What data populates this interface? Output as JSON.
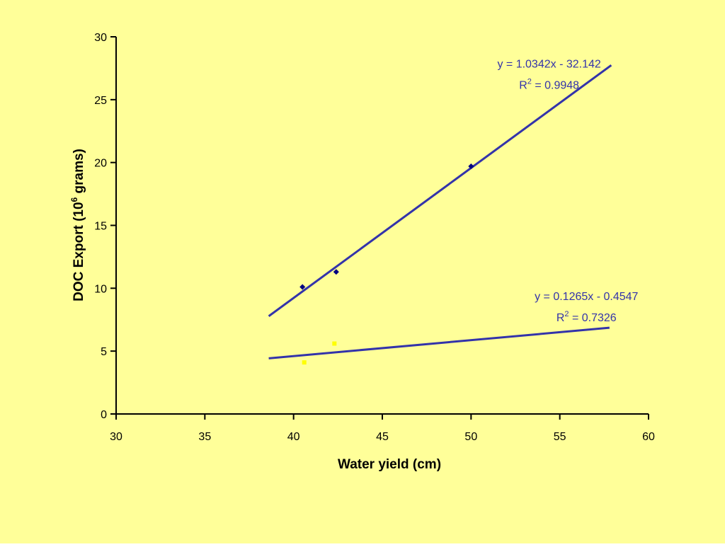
{
  "background_color": "#FFFF99",
  "axis_color": "#000000",
  "chart_data": {
    "type": "scatter",
    "title": "",
    "xlabel": "Water yield (cm)",
    "ylabel": {
      "prefix": "DOC Export (10",
      "superscript": "6",
      "suffix": " grams)"
    },
    "xlim": [
      30,
      60
    ],
    "ylim": [
      0,
      30
    ],
    "x_ticks": [
      30,
      35,
      40,
      45,
      50,
      55,
      60
    ],
    "y_ticks": [
      0,
      5,
      10,
      15,
      20,
      25,
      30
    ],
    "grid": false,
    "series": [
      {
        "marker": "diamond",
        "marker_color": "#000080",
        "points": [
          {
            "x": 40.5,
            "y": 10.1
          },
          {
            "x": 42.4,
            "y": 11.3
          },
          {
            "x": 50.0,
            "y": 19.7
          }
        ],
        "trendline": {
          "slope": 1.0342,
          "intercept": -32.142,
          "x_range": [
            38.6,
            57.9
          ],
          "color": "#3333AA",
          "equation": "y = 1.0342x - 32.142",
          "r2_prefix": "R",
          "r2_sup": "2",
          "r2_suffix": " = 0.9948",
          "label_anchor": {
            "x": 54.4,
            "y": 27.9
          }
        }
      },
      {
        "marker": "square",
        "marker_color": "#FFFF00",
        "points": [
          {
            "x": 40.6,
            "y": 4.1
          },
          {
            "x": 42.3,
            "y": 5.6
          }
        ],
        "trendline": {
          "slope": 0.1265,
          "intercept": -0.4547,
          "x_range": [
            38.6,
            57.8
          ],
          "color": "#3333AA",
          "equation": "y = 0.1265x - 0.4547",
          "r2_prefix": "R",
          "r2_sup": "2",
          "r2_suffix": " = 0.7326",
          "label_anchor": {
            "x": 56.5,
            "y": 9.4
          }
        }
      }
    ]
  }
}
